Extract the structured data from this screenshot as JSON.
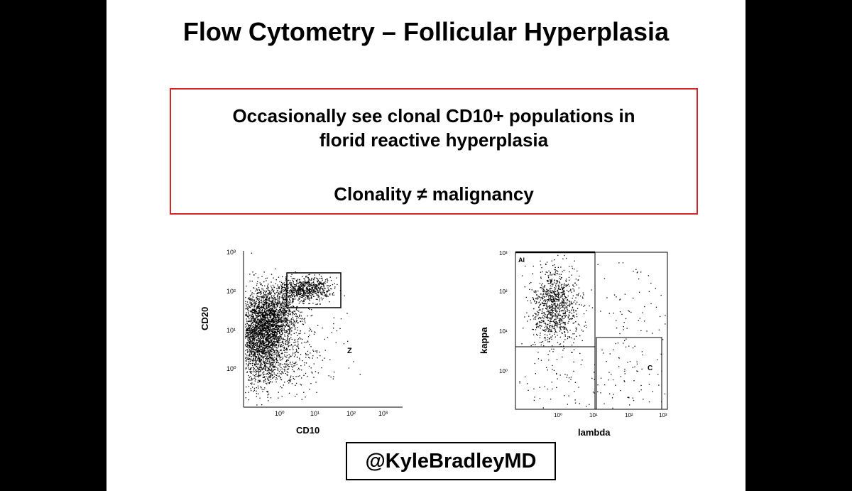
{
  "slide": {
    "title": "Flow Cytometry – Follicular Hyperplasia",
    "callout": {
      "line1": "Occasionally see clonal CD10+ populations in",
      "line2": "florid reactive hyperplasia",
      "line3": "Clonality ≠ malignancy",
      "border_color": "#d62728"
    },
    "plot_left": {
      "xlabel": "CD10",
      "ylabel": "CD20",
      "y_ticks": [
        "10³",
        "10²",
        "10¹",
        "10⁰"
      ],
      "x_ticks": [
        "10⁰",
        "10¹",
        "10²",
        "10³"
      ],
      "gate_label": "Z"
    },
    "plot_right": {
      "xlabel": "lambda",
      "ylabel": "kappa",
      "y_ticks": [
        "10³",
        "10²",
        "10¹",
        "10⁰"
      ],
      "x_ticks": [
        "10⁰",
        "10¹",
        "10²",
        "10³"
      ],
      "gate_label_top": "Al",
      "gate_label_bottom": "C"
    },
    "handle": "@KyleBradleyMD"
  }
}
